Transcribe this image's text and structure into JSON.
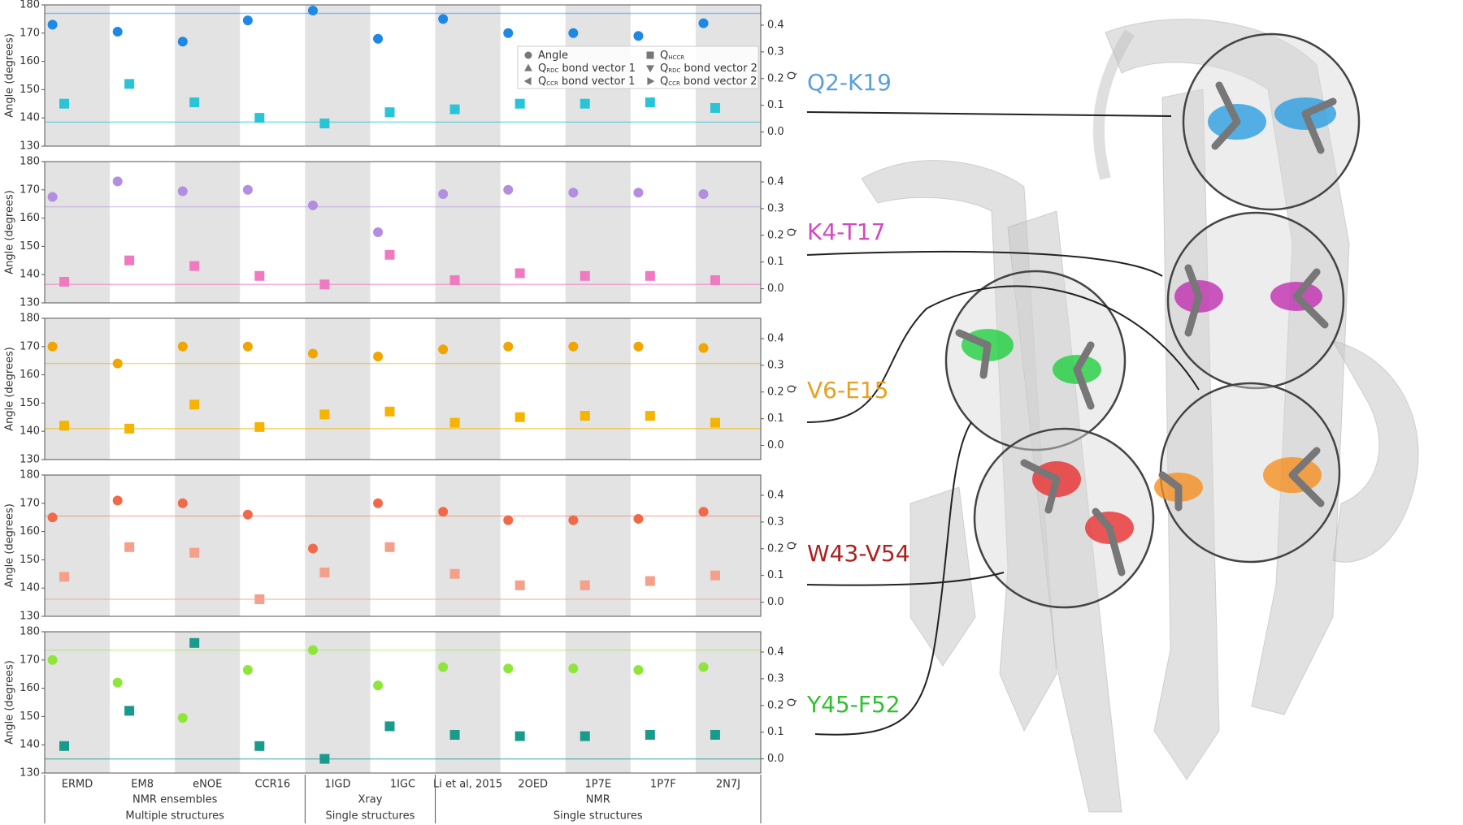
{
  "chart_data": [
    {
      "type": "dot",
      "title": "Q2-K19",
      "title_color": "#5aa0d8",
      "ylabel": "Angle (degrees)",
      "y2label": "Q",
      "ylim": [
        130,
        180
      ],
      "yticks": [
        130,
        140,
        150,
        160,
        170,
        180
      ],
      "y2lim": [
        -0.053,
        0.476
      ],
      "y2ticks": [
        {
          "value": 0,
          "label": "0.0"
        },
        0.1,
        0.2,
        0.3,
        0.4
      ],
      "angle_reference": 177,
      "q_reference": 0.037,
      "series": [
        {
          "marker": "circle",
          "color": "#1e88e5",
          "values": [
            173,
            170.5,
            167,
            174.5,
            178,
            168,
            175,
            170,
            170,
            169,
            173.5
          ]
        },
        {
          "marker": "square",
          "axis": "y2",
          "color": "#29c5d6",
          "values": [
            0.106,
            0.18,
            0.111,
            0.053,
            0.032,
            0.074,
            0.085,
            0.106,
            0.106,
            0.111,
            0.09
          ]
        }
      ]
    },
    {
      "type": "dot",
      "title": "K4-T17",
      "title_color": "#d04ac0",
      "ylabel": "Angle (degrees)",
      "y2label": "Q",
      "ylim": [
        130,
        180
      ],
      "yticks": [
        130,
        140,
        150,
        160,
        170,
        180
      ],
      "y2lim": [
        -0.053,
        0.476
      ],
      "y2ticks": [
        {
          "value": 0,
          "label": "0.0"
        },
        0.1,
        0.2,
        0.3,
        0.4
      ],
      "angle_reference": 164,
      "q_reference": 0.016,
      "series": [
        {
          "marker": "circle",
          "color": "#b38ee0",
          "values": [
            167.5,
            173,
            169.5,
            170,
            164.5,
            155,
            168.5,
            170,
            169,
            169,
            168.5
          ]
        },
        {
          "marker": "square",
          "axis": "y2",
          "color": "#f07ac0",
          "values": [
            0.026,
            0.106,
            0.085,
            0.048,
            0.016,
            0.127,
            0.032,
            0.058,
            0.048,
            0.048,
            0.032
          ]
        }
      ]
    },
    {
      "type": "dot",
      "title": "V6-E15",
      "title_color": "#e8a020",
      "ylabel": "Angle (degrees)",
      "y2label": "Q",
      "ylim": [
        130,
        180
      ],
      "yticks": [
        130,
        140,
        150,
        160,
        170,
        180
      ],
      "y2lim": [
        -0.053,
        0.476
      ],
      "y2ticks": [
        {
          "value": 0,
          "label": "0.0"
        },
        0.1,
        0.2,
        0.3,
        0.4
      ],
      "angle_reference": 164,
      "q_reference": 0.063,
      "series": [
        {
          "marker": "circle",
          "color": "#f0a500",
          "values": [
            170,
            164,
            170,
            170,
            167.5,
            166.5,
            169,
            170,
            170,
            170,
            169.5
          ]
        },
        {
          "marker": "square",
          "axis": "y2",
          "color": "#f4b400",
          "values": [
            0.074,
            0.063,
            0.153,
            0.069,
            0.116,
            0.127,
            0.085,
            0.106,
            0.111,
            0.111,
            0.085
          ]
        }
      ]
    },
    {
      "type": "dot",
      "title": "W43-V54",
      "title_color": "#b02020",
      "ylabel": "Angle (degrees)",
      "y2label": "Q",
      "ylim": [
        130,
        180
      ],
      "yticks": [
        130,
        140,
        150,
        160,
        170,
        180
      ],
      "y2lim": [
        -0.053,
        0.476
      ],
      "y2ticks": [
        {
          "value": 0,
          "label": "0.0"
        },
        0.1,
        0.2,
        0.3,
        0.4
      ],
      "angle_reference": 165.5,
      "q_reference": 0.011,
      "series": [
        {
          "marker": "circle",
          "color": "#f06a4a",
          "values": [
            165,
            171,
            170,
            166,
            154,
            170,
            167,
            164,
            164,
            164.5,
            167
          ]
        },
        {
          "marker": "square",
          "axis": "y2",
          "color": "#f5a08a",
          "values": [
            0.095,
            0.206,
            0.185,
            0.011,
            0.111,
            0.206,
            0.106,
            0.063,
            0.063,
            0.079,
            0.1
          ]
        }
      ]
    },
    {
      "type": "dot",
      "title": "Y45-F52",
      "title_color": "#30c030",
      "ylabel": "Angle (degrees)",
      "y2label": "Q",
      "ylim": [
        130,
        180
      ],
      "yticks": [
        130,
        140,
        150,
        160,
        170,
        180
      ],
      "y2lim": [
        -0.053,
        0.476
      ],
      "y2ticks": [
        {
          "value": 0,
          "label": "0.0"
        },
        0.1,
        0.2,
        0.3,
        0.4
      ],
      "angle_reference": 173.5,
      "q_reference": 0,
      "series": [
        {
          "marker": "circle",
          "color": "#8ee63a",
          "values": [
            170,
            162,
            149.5,
            166.5,
            173.5,
            161,
            167.5,
            167,
            167,
            166.5,
            167.5
          ]
        },
        {
          "marker": "square",
          "axis": "y2",
          "color": "#1a9a8a",
          "values": [
            0.048,
            0.18,
            0.434,
            0.048,
            0,
            0.122,
            0.09,
            0.085,
            0.085,
            0.09,
            0.09
          ]
        }
      ]
    }
  ],
  "x_axis": {
    "categories": [
      "ERMD",
      "EM8",
      "eNOE",
      "CCR16",
      "1IGD",
      "1IGC",
      "Li et al, 2015",
      "2OED",
      "1P7E",
      "1P7F",
      "2N7J"
    ],
    "groups": [
      [
        "NMR ensembles",
        "Multiple structures"
      ],
      [
        "Xray",
        "Single structures"
      ],
      [
        "NMR",
        "Single structures"
      ]
    ]
  },
  "legend": [
    {
      "text": "Angle",
      "marker": "circle"
    },
    {
      "symbol": "Q",
      "subscript": "HCCR",
      "marker": "square"
    },
    {
      "symbol": "Q",
      "subscript": "RDC",
      "text": "bond vector 1",
      "marker": "triangle-up"
    },
    {
      "symbol": "Q",
      "subscript": "RDC",
      "text": "bond vector 2",
      "marker": "triangle-down"
    },
    {
      "symbol": "Q",
      "subscript": "CCR",
      "text": "bond vector 1",
      "marker": "triangle-left"
    },
    {
      "symbol": "Q",
      "subscript": "CCR",
      "text": "bond vector 2",
      "marker": "triangle-right"
    }
  ]
}
